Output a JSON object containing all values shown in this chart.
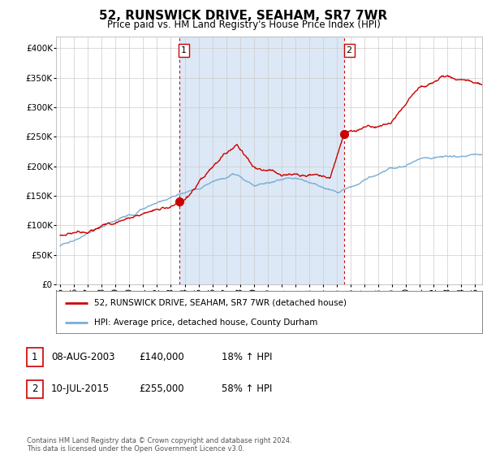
{
  "title": "52, RUNSWICK DRIVE, SEAHAM, SR7 7WR",
  "subtitle": "Price paid vs. HM Land Registry's House Price Index (HPI)",
  "ytick_values": [
    0,
    50000,
    100000,
    150000,
    200000,
    250000,
    300000,
    350000,
    400000
  ],
  "ylim": [
    0,
    420000
  ],
  "xlim_start": 1994.7,
  "xlim_end": 2025.5,
  "purchase1_x": 2003.6,
  "purchase1_y": 140000,
  "purchase2_x": 2015.53,
  "purchase2_y": 255000,
  "red_line_color": "#cc0000",
  "blue_line_color": "#7aaed6",
  "shade_color": "#dce8f5",
  "vline_color": "#cc0000",
  "grid_color": "#cccccc",
  "legend_label_red": "52, RUNSWICK DRIVE, SEAHAM, SR7 7WR (detached house)",
  "legend_label_blue": "HPI: Average price, detached house, County Durham",
  "table_rows": [
    {
      "num": "1",
      "date": "08-AUG-2003",
      "price": "£140,000",
      "hpi": "18% ↑ HPI"
    },
    {
      "num": "2",
      "date": "10-JUL-2015",
      "price": "£255,000",
      "hpi": "58% ↑ HPI"
    }
  ],
  "footnote": "Contains HM Land Registry data © Crown copyright and database right 2024.\nThis data is licensed under the Open Government Licence v3.0.",
  "bg_color": "#ffffff",
  "plot_bg_color": "#ffffff"
}
